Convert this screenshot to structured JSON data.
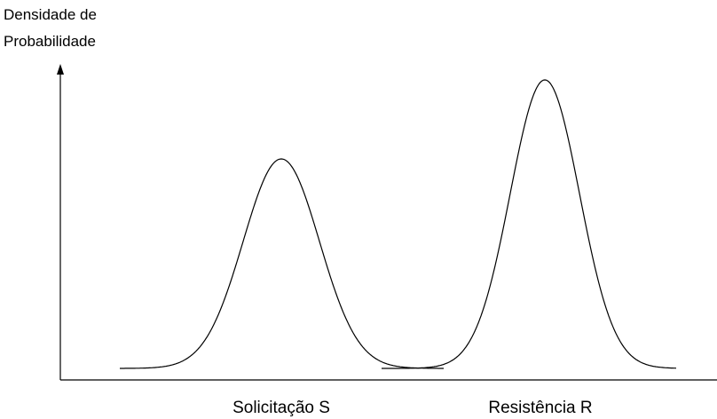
{
  "chart_data": {
    "type": "line",
    "title": "",
    "ylabel_lines": [
      "Densidade de",
      "Probabilidade"
    ],
    "xlabel": "",
    "categories": [
      "Solicitação S",
      "Resistência R"
    ],
    "series": [
      {
        "label": "Solicitação S",
        "mean": 317,
        "peak": 236,
        "sigma": 43,
        "x_range": [
          135,
          500
        ]
      },
      {
        "label": "Resistência R",
        "mean": 614,
        "peak": 325,
        "sigma": 39,
        "x_range": [
          430,
          762
        ]
      }
    ],
    "x_range": [
      0,
      800
    ],
    "y_range": [
      0,
      360
    ],
    "grid": false,
    "legend": "none",
    "colors": {
      "curve": "#000000",
      "axis": "#000000",
      "text": "#000000"
    }
  }
}
